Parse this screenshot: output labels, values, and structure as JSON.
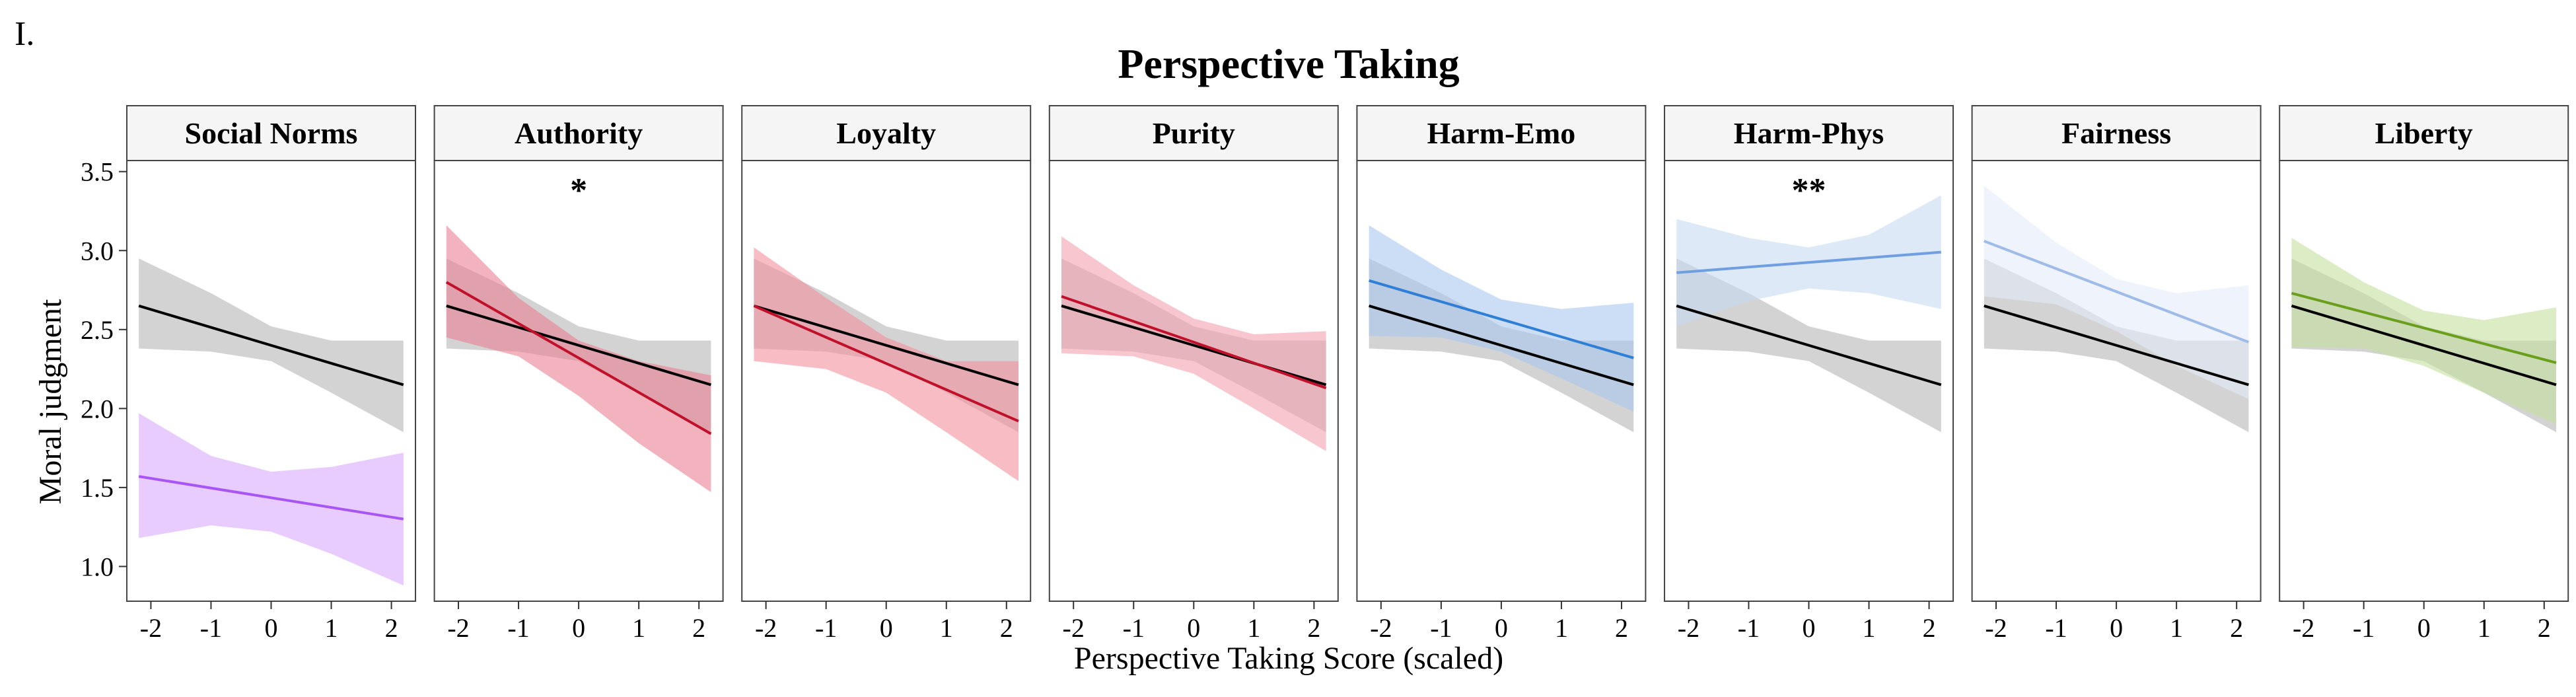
{
  "panel_tag": "I.",
  "chart_data": {
    "type": "line",
    "title": "Perspective Taking",
    "xlabel": "Perspective Taking Score (scaled)",
    "ylabel": "Moral judgment",
    "xlim": [
      -2.4,
      2.4
    ],
    "ylim": [
      0.78,
      3.57
    ],
    "x_ticks": [
      -2,
      -1,
      0,
      1,
      2
    ],
    "x_tick_labels": [
      "-2",
      "-1",
      "0",
      "1",
      "2"
    ],
    "y_ticks": [
      1.0,
      1.5,
      2.0,
      2.5,
      3.0,
      3.5
    ],
    "y_tick_labels": [
      "1.0",
      "1.5",
      "2.0",
      "2.5",
      "3.0",
      "3.5"
    ],
    "grid": false,
    "reference": {
      "color": "#000000",
      "ribbon_color": "#9e9e9e",
      "x": [
        -2.2,
        2.2
      ],
      "y": [
        2.65,
        2.15
      ],
      "band_x": [
        -2.2,
        -1,
        0,
        1,
        2.2
      ],
      "band_lower": [
        2.38,
        2.36,
        2.3,
        2.1,
        1.85
      ],
      "band_upper": [
        2.95,
        2.73,
        2.52,
        2.43,
        2.43
      ]
    },
    "facets": [
      {
        "label": "Social Norms",
        "annotation": "",
        "color": "#a855f7",
        "ribbon_color": "#d9aaff",
        "x": [
          -2.2,
          2.2
        ],
        "y": [
          1.57,
          1.3
        ],
        "band_x": [
          -2.2,
          -1,
          0,
          1,
          2.2
        ],
        "band_lower": [
          1.18,
          1.26,
          1.22,
          1.08,
          0.88
        ],
        "band_upper": [
          1.97,
          1.7,
          1.6,
          1.63,
          1.72
        ]
      },
      {
        "label": "Authority",
        "annotation": "*",
        "color": "#c0102a",
        "ribbon_color": "#e98095",
        "x": [
          -2.2,
          2.2
        ],
        "y": [
          2.8,
          1.84
        ],
        "band_x": [
          -2.2,
          -1,
          0,
          1,
          2.2
        ],
        "band_lower": [
          2.45,
          2.33,
          2.08,
          1.78,
          1.47
        ],
        "band_upper": [
          3.16,
          2.7,
          2.43,
          2.3,
          2.21
        ]
      },
      {
        "label": "Loyalty",
        "annotation": "",
        "color": "#c0102a",
        "ribbon_color": "#f4909f",
        "x": [
          -2.2,
          2.2
        ],
        "y": [
          2.65,
          1.92
        ],
        "band_x": [
          -2.2,
          -1,
          0,
          1,
          2.2
        ],
        "band_lower": [
          2.3,
          2.25,
          2.1,
          1.85,
          1.54
        ],
        "band_upper": [
          3.02,
          2.7,
          2.45,
          2.3,
          2.3
        ]
      },
      {
        "label": "Purity",
        "annotation": "",
        "color": "#c0102a",
        "ribbon_color": "#f4a0ad",
        "x": [
          -2.2,
          2.2
        ],
        "y": [
          2.71,
          2.13
        ],
        "band_x": [
          -2.2,
          -1,
          0,
          1,
          2.2
        ],
        "band_lower": [
          2.35,
          2.33,
          2.22,
          2.0,
          1.73
        ],
        "band_upper": [
          3.09,
          2.78,
          2.57,
          2.47,
          2.49
        ]
      },
      {
        "label": "Harm-Emo",
        "annotation": "",
        "color": "#2f7fd6",
        "ribbon_color": "#a9c8ee",
        "x": [
          -2.2,
          2.2
        ],
        "y": [
          2.81,
          2.32
        ],
        "band_x": [
          -2.2,
          -1,
          0,
          1,
          2.2
        ],
        "band_lower": [
          2.46,
          2.45,
          2.36,
          2.19,
          1.98
        ],
        "band_upper": [
          3.16,
          2.88,
          2.69,
          2.63,
          2.67
        ]
      },
      {
        "label": "Harm-Phys",
        "annotation": "**",
        "color": "#6f9fe0",
        "ribbon_color": "#c8daf4",
        "x": [
          -2.2,
          2.2
        ],
        "y": [
          2.86,
          2.99
        ],
        "band_x": [
          -2.2,
          -1,
          0,
          1,
          2.2
        ],
        "band_lower": [
          2.52,
          2.68,
          2.76,
          2.73,
          2.63
        ],
        "band_upper": [
          3.2,
          3.08,
          3.02,
          3.1,
          3.35
        ]
      },
      {
        "label": "Fairness",
        "annotation": "",
        "color": "#9fbce8",
        "ribbon_color": "#e2ebfa",
        "x": [
          -2.2,
          2.2
        ],
        "y": [
          3.06,
          2.42
        ],
        "band_x": [
          -2.2,
          -1,
          0,
          1,
          2.2
        ],
        "band_lower": [
          2.71,
          2.66,
          2.49,
          2.27,
          2.06
        ],
        "band_upper": [
          3.41,
          3.05,
          2.82,
          2.73,
          2.78
        ]
      },
      {
        "label": "Liberty",
        "annotation": "",
        "color": "#6a9f1c",
        "ribbon_color": "#c5df9e",
        "x": [
          -2.2,
          2.2
        ],
        "y": [
          2.73,
          2.29
        ],
        "band_x": [
          -2.2,
          -1,
          0,
          1,
          2.2
        ],
        "band_lower": [
          2.39,
          2.38,
          2.27,
          2.1,
          1.9
        ],
        "band_upper": [
          3.08,
          2.8,
          2.62,
          2.56,
          2.64
        ]
      }
    ]
  }
}
